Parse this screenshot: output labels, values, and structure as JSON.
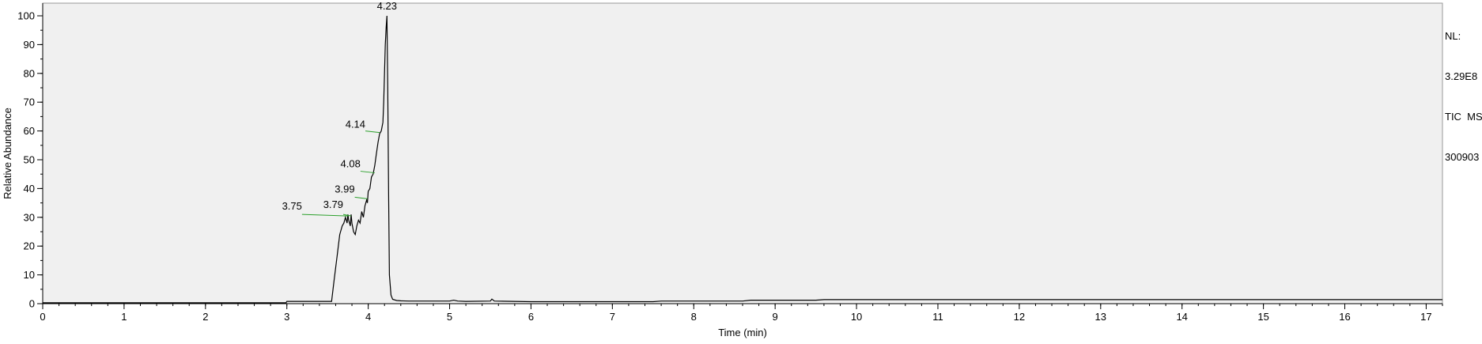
{
  "info": {
    "nl_label": "NL:",
    "nl_value": "3.29E8",
    "trace": "TIC  MS",
    "sample": "300903"
  },
  "chart_data": {
    "type": "line",
    "xlabel": "Time (min)",
    "ylabel": "Relative Abundance",
    "xlim": [
      0,
      17.2
    ],
    "ylim": [
      0,
      100
    ],
    "xticks": [
      0,
      1,
      2,
      3,
      4,
      5,
      6,
      7,
      8,
      9,
      10,
      11,
      12,
      13,
      14,
      15,
      16,
      17
    ],
    "yticks": [
      0,
      10,
      20,
      30,
      40,
      50,
      60,
      70,
      80,
      90,
      100
    ],
    "grid": false,
    "series": [
      {
        "x": [
          0,
          2.99,
          3.0,
          3.55,
          3.58,
          3.62,
          3.65,
          3.68,
          3.7,
          3.72,
          3.74,
          3.75,
          3.76,
          3.78,
          3.79,
          3.8,
          3.82,
          3.84,
          3.86,
          3.88,
          3.9,
          3.92,
          3.94,
          3.96,
          3.98,
          3.99,
          4.0,
          4.02,
          4.04,
          4.06,
          4.08,
          4.1,
          4.12,
          4.14,
          4.16,
          4.18,
          4.19,
          4.2,
          4.21,
          4.22,
          4.23,
          4.24,
          4.25,
          4.26,
          4.28,
          4.3,
          4.35,
          4.4,
          4.5,
          4.7,
          5.0,
          5.05,
          5.1,
          5.2,
          5.5,
          5.52,
          5.55,
          6.0,
          7.0,
          7.5,
          7.6,
          8.0,
          8.6,
          8.7,
          9.5,
          9.6,
          10,
          12,
          14,
          16,
          17.2
        ],
        "y": [
          0.3,
          0.3,
          0.8,
          0.8,
          8,
          17,
          24,
          27,
          28,
          30,
          28,
          31,
          29,
          27,
          31,
          28,
          25,
          24,
          27,
          29,
          28,
          32,
          30,
          34,
          36,
          35,
          39,
          40,
          44,
          45,
          48,
          52,
          56,
          59,
          60,
          63,
          70,
          80,
          90,
          96,
          100,
          75,
          38,
          10,
          3,
          1.5,
          1.1,
          1.0,
          0.9,
          0.9,
          0.9,
          1.2,
          0.9,
          0.8,
          0.9,
          1.6,
          0.9,
          0.7,
          0.7,
          0.7,
          0.9,
          0.9,
          0.9,
          1.2,
          1.2,
          1.4,
          1.4,
          1.4,
          1.4,
          1.4,
          1.4
        ]
      }
    ],
    "annotations": [
      {
        "label": "4.23",
        "x": 4.23,
        "y": 100
      },
      {
        "label": "4.14",
        "x": 4.14,
        "y": 60
      },
      {
        "label": "4.08",
        "x": 4.08,
        "y": 46
      },
      {
        "label": "3.99",
        "x": 3.99,
        "y": 37
      },
      {
        "label": "3.79",
        "x": 3.79,
        "y": 31
      },
      {
        "label": "3.75",
        "x": 3.75,
        "y": 31
      }
    ]
  }
}
